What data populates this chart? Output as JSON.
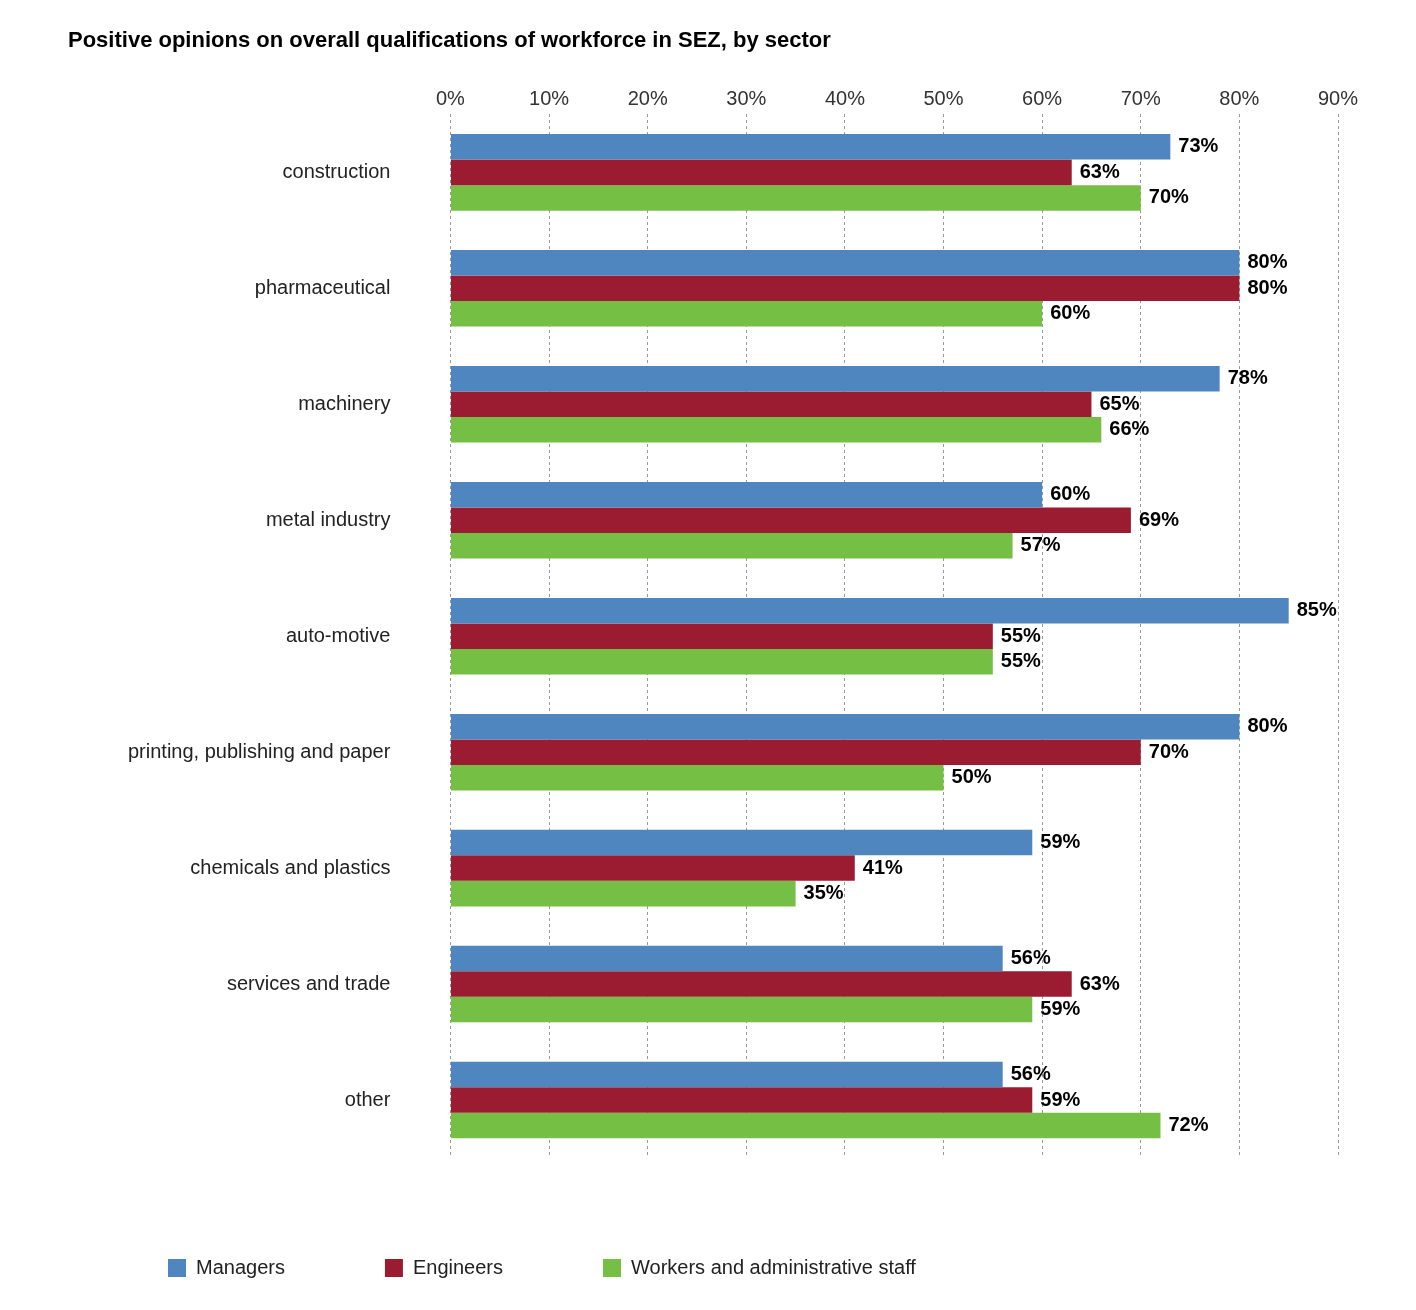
{
  "chart_data": {
    "type": "bar",
    "orientation": "horizontal",
    "title": "Positive opinions on overall qualifications of workforce in SEZ, by sector",
    "categories": [
      "construction",
      "pharmaceutical",
      "machinery",
      "metal industry",
      "auto-motive",
      "printing, publishing and paper",
      "chemicals and plastics",
      "services and trade",
      "other"
    ],
    "series": [
      {
        "name": "Managers",
        "color": "#4f86c0",
        "values": [
          73,
          80,
          78,
          60,
          85,
          80,
          59,
          56,
          56
        ],
        "value_labels": [
          "73%",
          "80%",
          "78%",
          "60%",
          "85%",
          "80%",
          "59%",
          "56%",
          "56%"
        ]
      },
      {
        "name": "Engineers",
        "color": "#9b1c30",
        "values": [
          63,
          80,
          65,
          69,
          55,
          70,
          41,
          63,
          59
        ],
        "value_labels": [
          "63%",
          "80%",
          "65%",
          "69%",
          "55%",
          "70%",
          "41%",
          "63%",
          "59%"
        ]
      },
      {
        "name": "Workers and administrative staff",
        "color": "#76bf45",
        "values": [
          70,
          60,
          66,
          57,
          55,
          50,
          35,
          59,
          72
        ],
        "value_labels": [
          "70%",
          "60%",
          "66%",
          "57%",
          "55%",
          "50%",
          "35%",
          "59%",
          "72%"
        ]
      }
    ],
    "xlim": [
      0,
      90
    ],
    "xticks": [
      {
        "value": 0,
        "label": "0%"
      },
      {
        "value": 10,
        "label": "10%"
      },
      {
        "value": 20,
        "label": "20%"
      },
      {
        "value": 30,
        "label": "30%"
      },
      {
        "value": 40,
        "label": "40%"
      },
      {
        "value": 50,
        "label": "50%"
      },
      {
        "value": 60,
        "label": "60%"
      },
      {
        "value": 70,
        "label": "70%"
      },
      {
        "value": 80,
        "label": "80%"
      },
      {
        "value": 90,
        "label": "90%"
      }
    ],
    "grid": "x",
    "legend": "bottom left"
  }
}
